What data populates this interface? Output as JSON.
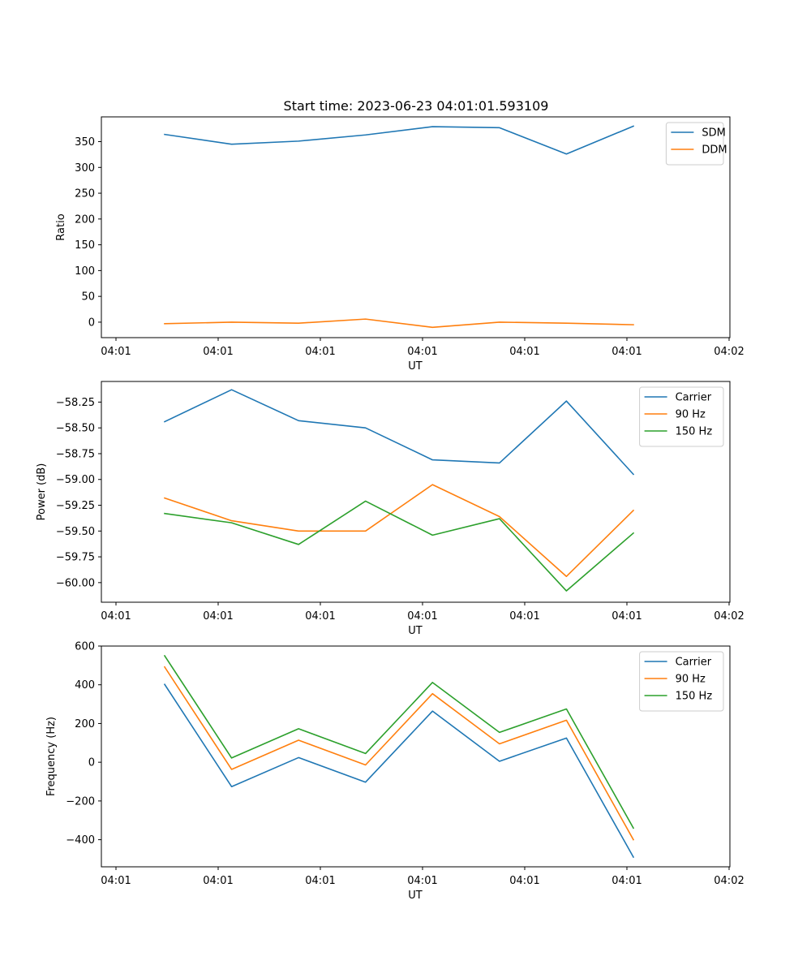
{
  "figure": {
    "title": "Start time: 2023-06-23 04:01:01.593109"
  },
  "colors": {
    "c0": "#1f77b4",
    "c1": "#ff7f0e",
    "c2": "#2ca02c"
  },
  "chart_data": [
    {
      "type": "line",
      "title": "Start time: 2023-06-23 04:01:01.593109",
      "xlabel": "UT",
      "ylabel": "Ratio",
      "x_tick_labels": [
        "04:01",
        "04:01",
        "04:01",
        "04:01",
        "04:01",
        "04:01",
        "04:02"
      ],
      "x": [
        1,
        2,
        3,
        4,
        5,
        6,
        7,
        8
      ],
      "xlim": [
        0.24,
        9.24
      ],
      "ylim": [
        -30,
        398
      ],
      "y_ticks": [
        0,
        50,
        100,
        150,
        200,
        250,
        300,
        350
      ],
      "y_tick_labels": [
        "0",
        "50",
        "100",
        "150",
        "200",
        "250",
        "300",
        "350"
      ],
      "legend_position": "top-right",
      "grid": false,
      "series": [
        {
          "name": "SDM",
          "color": "#1f77b4",
          "values": [
            364,
            345,
            351,
            363,
            379,
            377,
            326,
            380
          ]
        },
        {
          "name": "DDM",
          "color": "#ff7f0e",
          "values": [
            -3,
            0,
            -2,
            6,
            -10,
            0,
            -2,
            -5
          ]
        }
      ]
    },
    {
      "type": "line",
      "title": "",
      "xlabel": "UT",
      "ylabel": "Power (dB)",
      "x_tick_labels": [
        "04:01",
        "04:01",
        "04:01",
        "04:01",
        "04:01",
        "04:01",
        "04:02"
      ],
      "x": [
        1,
        2,
        3,
        4,
        5,
        6,
        7,
        8
      ],
      "xlim": [
        0.24,
        9.24
      ],
      "ylim": [
        -60.19,
        -58.05
      ],
      "y_ticks": [
        -60.0,
        -59.75,
        -59.5,
        -59.25,
        -59.0,
        -58.75,
        -58.5,
        -58.25
      ],
      "y_tick_labels": [
        "−60.00",
        "−59.75",
        "−59.50",
        "−59.25",
        "−59.00",
        "−58.75",
        "−58.50",
        "−58.25"
      ],
      "legend_position": "top-right",
      "grid": false,
      "series": [
        {
          "name": "Carrier",
          "color": "#1f77b4",
          "values": [
            -58.44,
            -58.13,
            -58.43,
            -58.5,
            -58.81,
            -58.84,
            -58.24,
            -58.95
          ]
        },
        {
          "name": "90 Hz",
          "color": "#ff7f0e",
          "values": [
            -59.18,
            -59.4,
            -59.5,
            -59.5,
            -59.05,
            -59.36,
            -59.94,
            -59.3
          ]
        },
        {
          "name": "150 Hz",
          "color": "#2ca02c",
          "values": [
            -59.33,
            -59.42,
            -59.63,
            -59.21,
            -59.54,
            -59.38,
            -60.08,
            -59.52
          ]
        }
      ]
    },
    {
      "type": "line",
      "title": "",
      "xlabel": "UT",
      "ylabel": "Frequency (Hz)",
      "x_tick_labels": [
        "04:01",
        "04:01",
        "04:01",
        "04:01",
        "04:01",
        "04:01",
        "04:02"
      ],
      "x": [
        1,
        2,
        3,
        4,
        5,
        6,
        7,
        8
      ],
      "xlim": [
        0.24,
        9.24
      ],
      "ylim": [
        -540,
        600
      ],
      "y_ticks": [
        -400,
        -200,
        0,
        200,
        400,
        600
      ],
      "y_tick_labels": [
        "−400",
        "−200",
        "0",
        "200",
        "400",
        "600"
      ],
      "legend_position": "top-right",
      "grid": false,
      "series": [
        {
          "name": "Carrier",
          "color": "#1f77b4",
          "values": [
            402,
            -126,
            24,
            -103,
            264,
            5,
            125,
            -490
          ]
        },
        {
          "name": "90 Hz",
          "color": "#ff7f0e",
          "values": [
            492,
            -37,
            114,
            -14,
            354,
            95,
            217,
            -400
          ]
        },
        {
          "name": "150 Hz",
          "color": "#2ca02c",
          "values": [
            550,
            22,
            173,
            45,
            412,
            154,
            275,
            -340
          ]
        }
      ]
    }
  ]
}
